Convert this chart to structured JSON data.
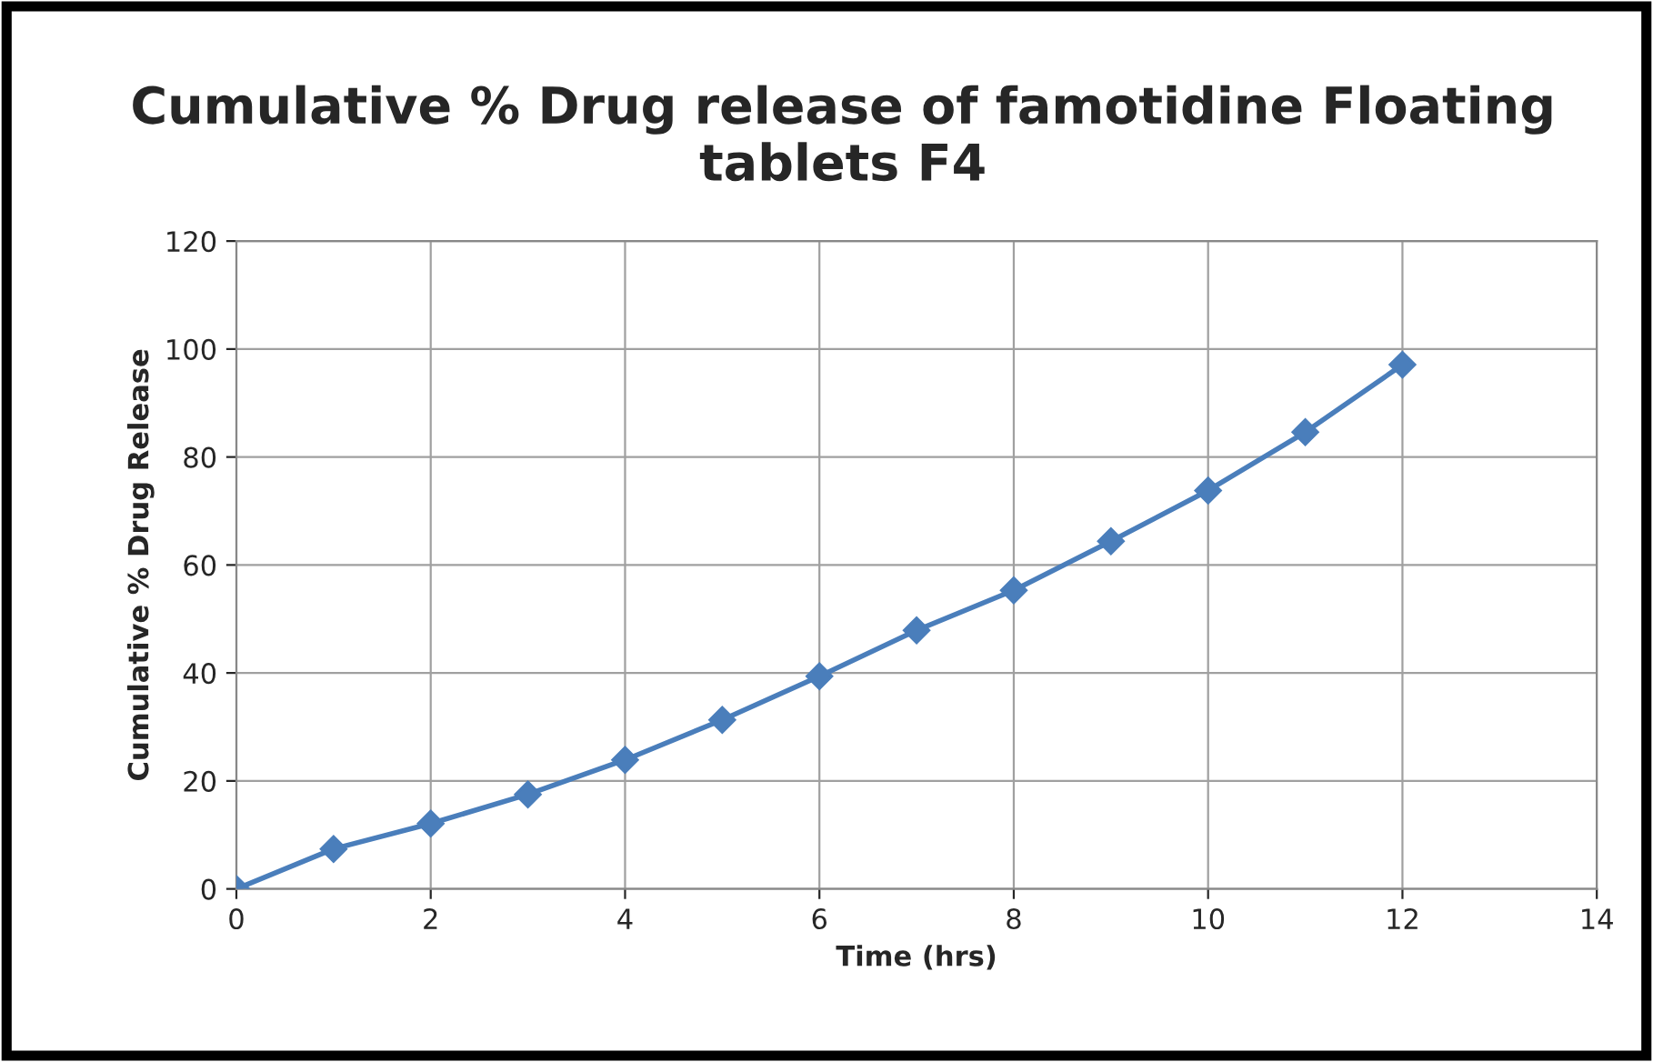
{
  "chart_data": {
    "type": "line",
    "title": "Cumulative % Drug release of famotidine Floating tablets F4",
    "xlabel": "Time (hrs)",
    "ylabel": "Cumulative % Drug Release",
    "x": [
      0,
      1,
      2,
      3,
      4,
      5,
      6,
      7,
      8,
      9,
      10,
      11,
      12
    ],
    "series": [
      {
        "color": "#4a7ebb",
        "values": [
          0,
          7.4,
          12.1,
          17.5,
          23.9,
          31.3,
          39.4,
          47.9,
          55.3,
          64.4,
          73.8,
          84.6,
          97.1
        ]
      }
    ],
    "xlim": [
      0,
      14
    ],
    "xticks": [
      0,
      2,
      4,
      6,
      8,
      10,
      12,
      14
    ],
    "ylim": [
      0,
      120
    ],
    "yticks": [
      0,
      20,
      40,
      60,
      80,
      100,
      120
    ],
    "grid": true,
    "legend": false,
    "marker": "diamond",
    "line_style": "solid"
  }
}
